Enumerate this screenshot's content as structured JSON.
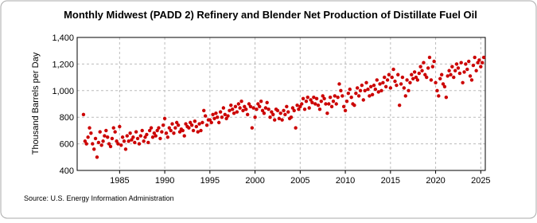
{
  "chart_data": {
    "type": "scatter",
    "title": "Monthly Midwest (PADD 2) Refinery and Blender Net Production of Distillate Fuel Oil",
    "y_label": "Thousand Barrels per Day",
    "source": "Source: U.S. Energy Information Administration",
    "xlim": [
      1980.3,
      2025.5
    ],
    "xticks": [
      1985,
      1990,
      1995,
      2000,
      2005,
      2010,
      2015,
      2020,
      2025
    ],
    "ylim": [
      400,
      1400
    ],
    "yticks": [
      400,
      600,
      800,
      {
        "value": 1000,
        "label": "1,000"
      },
      {
        "value": 1200,
        "label": "1,200"
      },
      {
        "value": 1400,
        "label": "1,400"
      }
    ],
    "grid": true,
    "color": "#cc0000",
    "x": [
      1981,
      1981.17,
      1981.33,
      1981.5,
      1981.67,
      1981.83,
      1982,
      1982.17,
      1982.33,
      1982.5,
      1982.67,
      1982.83,
      1983,
      1983.17,
      1983.33,
      1983.5,
      1983.67,
      1983.83,
      1984,
      1984.17,
      1984.33,
      1984.5,
      1984.67,
      1984.83,
      1985,
      1985.17,
      1985.33,
      1985.5,
      1985.67,
      1985.83,
      1986,
      1986.17,
      1986.33,
      1986.5,
      1986.67,
      1986.83,
      1987,
      1987.17,
      1987.33,
      1987.5,
      1987.67,
      1987.83,
      1988,
      1988.17,
      1988.33,
      1988.5,
      1988.67,
      1988.83,
      1989,
      1989.17,
      1989.33,
      1989.5,
      1989.67,
      1989.83,
      1990,
      1990.17,
      1990.33,
      1990.5,
      1990.67,
      1990.83,
      1991,
      1991.17,
      1991.33,
      1991.5,
      1991.67,
      1991.83,
      1992,
      1992.17,
      1992.33,
      1992.5,
      1992.67,
      1992.83,
      1993,
      1993.17,
      1993.33,
      1993.5,
      1993.67,
      1993.83,
      1994,
      1994.17,
      1994.33,
      1994.5,
      1994.67,
      1994.83,
      1995,
      1995.17,
      1995.33,
      1995.5,
      1995.67,
      1995.83,
      1996,
      1996.17,
      1996.33,
      1996.5,
      1996.67,
      1996.83,
      1997,
      1997.17,
      1997.33,
      1997.5,
      1997.67,
      1997.83,
      1998,
      1998.17,
      1998.33,
      1998.5,
      1998.67,
      1998.83,
      1999,
      1999.17,
      1999.33,
      1999.5,
      1999.67,
      1999.83,
      2000,
      2000.17,
      2000.33,
      2000.5,
      2000.67,
      2000.83,
      2001,
      2001.17,
      2001.33,
      2001.5,
      2001.67,
      2001.83,
      2002,
      2002.17,
      2002.33,
      2002.5,
      2002.67,
      2002.83,
      2003,
      2003.17,
      2003.33,
      2003.5,
      2003.67,
      2003.83,
      2004,
      2004.17,
      2004.33,
      2004.5,
      2004.67,
      2004.83,
      2005,
      2005.17,
      2005.33,
      2005.5,
      2005.67,
      2005.83,
      2006,
      2006.17,
      2006.33,
      2006.5,
      2006.67,
      2006.83,
      2007,
      2007.17,
      2007.33,
      2007.5,
      2007.67,
      2007.83,
      2008,
      2008.17,
      2008.33,
      2008.5,
      2008.67,
      2008.83,
      2009,
      2009.17,
      2009.33,
      2009.5,
      2009.67,
      2009.83,
      2010,
      2010.17,
      2010.33,
      2010.5,
      2010.67,
      2010.83,
      2011,
      2011.17,
      2011.33,
      2011.5,
      2011.67,
      2011.83,
      2012,
      2012.17,
      2012.33,
      2012.5,
      2012.67,
      2012.83,
      2013,
      2013.17,
      2013.33,
      2013.5,
      2013.67,
      2013.83,
      2014,
      2014.17,
      2014.33,
      2014.5,
      2014.67,
      2014.83,
      2015,
      2015.17,
      2015.33,
      2015.5,
      2015.67,
      2015.83,
      2016,
      2016.17,
      2016.33,
      2016.5,
      2016.67,
      2016.83,
      2017,
      2017.17,
      2017.33,
      2017.5,
      2017.67,
      2017.83,
      2018,
      2018.17,
      2018.33,
      2018.5,
      2018.67,
      2018.83,
      2019,
      2019.17,
      2019.33,
      2019.5,
      2019.67,
      2019.83,
      2020,
      2020.17,
      2020.33,
      2020.5,
      2020.67,
      2020.83,
      2021,
      2021.17,
      2021.33,
      2021.5,
      2021.67,
      2021.83,
      2022,
      2022.17,
      2022.33,
      2022.5,
      2022.67,
      2022.83,
      2023,
      2023.17,
      2023.33,
      2023.5,
      2023.67,
      2023.83,
      2024,
      2024.17,
      2024.33,
      2024.5,
      2024.67,
      2024.83,
      2025,
      2025.17,
      2025.33
    ],
    "values": [
      820,
      620,
      600,
      650,
      720,
      680,
      600,
      560,
      640,
      500,
      610,
      690,
      590,
      620,
      660,
      700,
      650,
      600,
      580,
      640,
      720,
      690,
      620,
      600,
      730,
      590,
      650,
      620,
      560,
      660,
      620,
      680,
      630,
      650,
      610,
      690,
      640,
      600,
      660,
      700,
      620,
      650,
      670,
      610,
      700,
      720,
      650,
      680,
      660,
      700,
      720,
      640,
      690,
      740,
      790,
      680,
      650,
      720,
      700,
      750,
      680,
      720,
      760,
      740,
      690,
      710,
      700,
      660,
      750,
      730,
      720,
      760,
      740,
      700,
      770,
      730,
      690,
      750,
      700,
      760,
      850,
      810,
      740,
      780,
      780,
      760,
      820,
      790,
      830,
      800,
      760,
      840,
      800,
      870,
      820,
      790,
      810,
      850,
      890,
      860,
      830,
      880,
      840,
      900,
      870,
      920,
      850,
      880,
      860,
      820,
      900,
      880,
      720,
      870,
      800,
      860,
      900,
      880,
      920,
      850,
      830,
      870,
      910,
      860,
      800,
      840,
      820,
      780,
      860,
      850,
      790,
      830,
      780,
      850,
      820,
      880,
      840,
      790,
      800,
      870,
      850,
      720,
      890,
      860,
      880,
      900,
      940,
      860,
      920,
      950,
      870,
      930,
      910,
      950,
      900,
      940,
      890,
      860,
      920,
      960,
      940,
      900,
      830,
      900,
      950,
      880,
      920,
      960,
      900,
      950,
      1050,
      1000,
      960,
      880,
      850,
      920,
      980,
      1010,
      950,
      900,
      890,
      980,
      1020,
      960,
      1000,
      1040,
      930,
      1000,
      1060,
      1010,
      960,
      1030,
      970,
      1040,
      1010,
      1080,
      990,
      1050,
      1000,
      1060,
      1100,
      1030,
      1080,
      1120,
      1020,
      1100,
      1160,
      1070,
      1040,
      1120,
      890,
      1050,
      1100,
      1020,
      960,
      1080,
      1000,
      1060,
      1120,
      1090,
      1140,
      1100,
      1080,
      1130,
      1180,
      1150,
      1210,
      1120,
      1100,
      1170,
      1250,
      1080,
      1180,
      1220,
      1060,
      1000,
      960,
      1090,
      1120,
      1050,
      1030,
      950,
      1110,
      1150,
      1120,
      1180,
      1100,
      1150,
      1200,
      1170,
      1130,
      1210,
      1060,
      1140,
      1200,
      1160,
      1220,
      1110,
      1080,
      1190,
      1250,
      1150,
      1210,
      1230,
      1180,
      1210,
      1250
    ]
  }
}
